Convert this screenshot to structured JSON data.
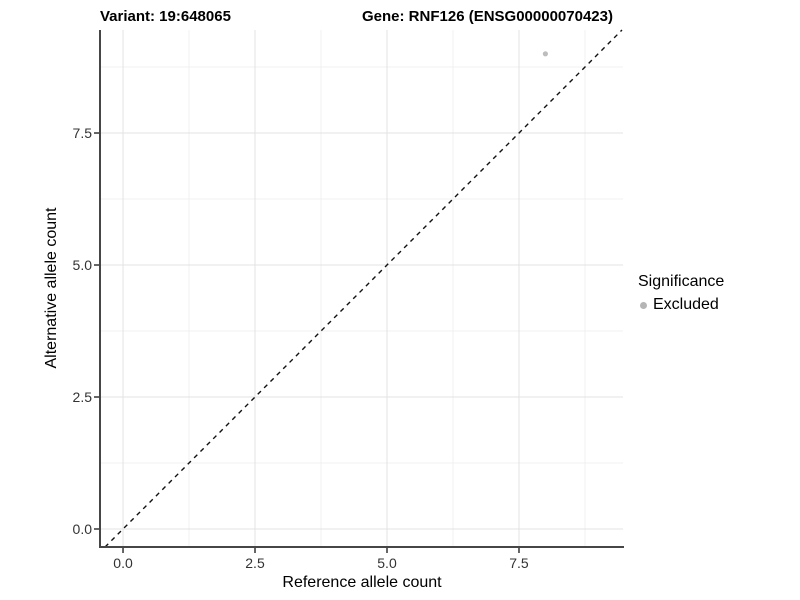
{
  "header": {
    "variant_title": "Variant: 19:648065",
    "gene_title": "Gene: RNF126 (ENSG00000070423)"
  },
  "legend": {
    "title": "Significance",
    "items": [
      {
        "label": "Excluded",
        "color": "#b5b5b5",
        "shape": "circle"
      }
    ]
  },
  "colors": {
    "background": "#ffffff",
    "major_grid": "#e3e3e3",
    "minor_grid": "#f0f0f0",
    "axis_line": "#464646",
    "tick_mark": "#333333",
    "tick_label": "#333333",
    "reference_line": "#111111",
    "point_excluded": "#bdbdbd"
  },
  "chart_data": {
    "type": "scatter",
    "title": "Variant: 19:648065 — Gene: RNF126 (ENSG00000070423)",
    "xlabel": "Reference allele count",
    "ylabel": "Alternative allele count",
    "xlim": [
      -0.436,
      9.47
    ],
    "ylim": [
      -0.341,
      9.451
    ],
    "x_ticks": [
      0,
      2.5,
      5,
      7.5
    ],
    "x_tick_labels": [
      "0.0",
      "2.5",
      "5.0",
      "7.5"
    ],
    "y_ticks": [
      0,
      2.5,
      5,
      7.5
    ],
    "y_tick_labels": [
      "0.0",
      "2.5",
      "5.0",
      "7.5"
    ],
    "x_minor_ticks": [
      1.25,
      3.75,
      6.25,
      8.75
    ],
    "y_minor_ticks": [
      1.25,
      3.75,
      6.25,
      8.75
    ],
    "grid": true,
    "legend_position": "right",
    "series": [
      {
        "name": "Excluded",
        "color": "#bdbdbd",
        "points": [
          {
            "x": 8,
            "y": 9
          }
        ]
      }
    ],
    "reference_line": {
      "type": "identity",
      "slope": 1,
      "intercept": 0,
      "style": "dashed",
      "color": "#111111"
    }
  }
}
